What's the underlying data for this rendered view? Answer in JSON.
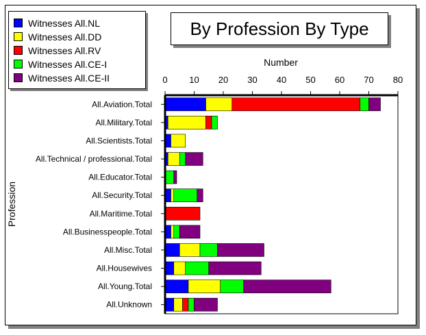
{
  "chart_data": {
    "type": "bar",
    "orientation": "horizontal",
    "stacked": true,
    "title": "By Profession By Type",
    "xlabel": "Number",
    "ylabel": "Profession",
    "xlim": [
      0,
      80
    ],
    "xticks": [
      0,
      10,
      20,
      30,
      40,
      50,
      60,
      70,
      80
    ],
    "x_axis_position": "top",
    "legend_position": "top-left",
    "grid": false,
    "categories": [
      "All.Aviation.Total",
      "All.Military.Total",
      "All.Scientists.Total",
      "All.Technical / professional.Total",
      "All.Educator.Total",
      "All.Security.Total",
      "All.Maritime.Total",
      "All.Businesspeople.Total",
      "All.Misc.Total",
      "All.Housewives",
      "All.Young.Total",
      "All.Unknown"
    ],
    "series": [
      {
        "name": "Witnesses All.NL",
        "color": "#0000ff",
        "values": [
          14,
          1,
          2,
          1,
          0,
          2,
          0,
          2,
          5,
          3,
          8,
          3
        ]
      },
      {
        "name": "Witnesses All.DD",
        "color": "#ffff00",
        "values": [
          9,
          13,
          5,
          4,
          0,
          1,
          0,
          1,
          7,
          4,
          11,
          3
        ]
      },
      {
        "name": "Witnesses All.RV",
        "color": "#ff0000",
        "values": [
          44,
          2,
          0,
          0,
          0,
          0,
          12,
          0,
          0,
          0,
          0,
          2
        ]
      },
      {
        "name": "Witnesses All.CE-I",
        "color": "#00ff00",
        "values": [
          3,
          2,
          0,
          2,
          3,
          8,
          0,
          2,
          6,
          8,
          8,
          2
        ]
      },
      {
        "name": "Witnesses All.CE-II",
        "color": "#800080",
        "values": [
          4,
          0,
          0,
          6,
          1,
          2,
          0,
          7,
          16,
          18,
          30,
          8
        ]
      }
    ]
  }
}
